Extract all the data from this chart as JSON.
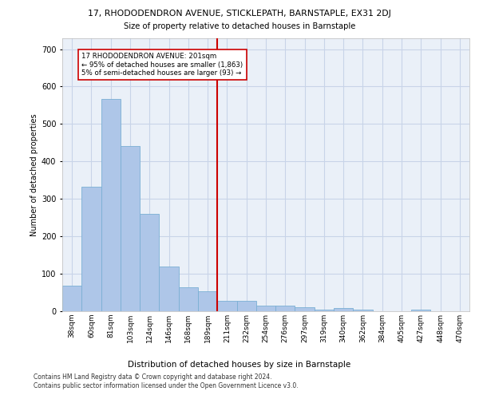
{
  "title": "17, RHODODENDRON AVENUE, STICKLEPATH, BARNSTAPLE, EX31 2DJ",
  "subtitle": "Size of property relative to detached houses in Barnstaple",
  "xlabel": "Distribution of detached houses by size in Barnstaple",
  "ylabel": "Number of detached properties",
  "bar_values": [
    68,
    332,
    567,
    441,
    259,
    120,
    63,
    53,
    28,
    28,
    15,
    15,
    10,
    5,
    8,
    5,
    0,
    0,
    5,
    0,
    0
  ],
  "bar_labels": [
    "38sqm",
    "60sqm",
    "81sqm",
    "103sqm",
    "124sqm",
    "146sqm",
    "168sqm",
    "189sqm",
    "211sqm",
    "232sqm",
    "254sqm",
    "276sqm",
    "297sqm",
    "319sqm",
    "340sqm",
    "362sqm",
    "384sqm",
    "405sqm",
    "427sqm",
    "448sqm",
    "470sqm"
  ],
  "bar_color": "#aec6e8",
  "bar_edge_color": "#7aafd4",
  "grid_color": "#c8d4e8",
  "background_color": "#eaf0f8",
  "vline_x": 7.5,
  "vline_color": "#cc0000",
  "annotation_text": "17 RHODODENDRON AVENUE: 201sqm\n← 95% of detached houses are smaller (1,863)\n5% of semi-detached houses are larger (93) →",
  "annotation_box_color": "#ffffff",
  "annotation_box_edge": "#cc0000",
  "ylim": [
    0,
    730
  ],
  "yticks": [
    0,
    100,
    200,
    300,
    400,
    500,
    600,
    700
  ],
  "footer": "Contains HM Land Registry data © Crown copyright and database right 2024.\nContains public sector information licensed under the Open Government Licence v3.0."
}
